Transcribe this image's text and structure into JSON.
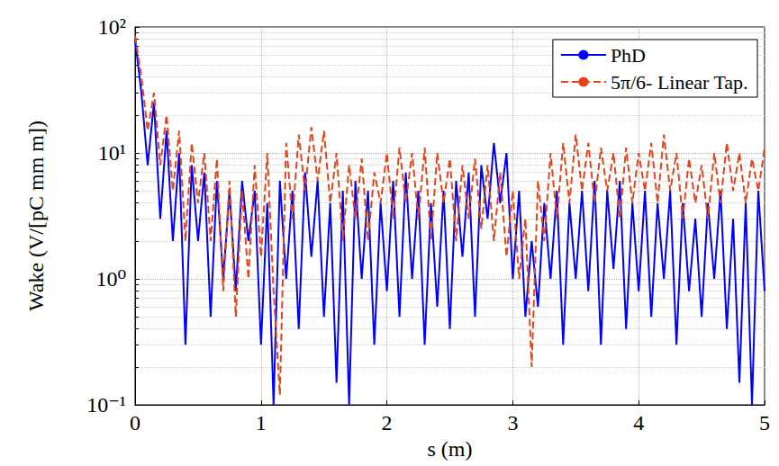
{
  "chart_data": {
    "type": "line",
    "x_label": "s (m)",
    "y_label": "Wake (V/[pC mm m])",
    "log": "y",
    "grid": true,
    "legend": "top-right",
    "xlim": [
      0,
      5
    ],
    "xticks": [
      0,
      1,
      2,
      3,
      4,
      5
    ],
    "ylim": [
      0.1,
      100
    ],
    "yticks": [
      {
        "value": 0.1,
        "label": "10⁻¹"
      },
      {
        "value": 1,
        "label": "10⁰"
      },
      {
        "value": 10,
        "label": "10¹"
      },
      {
        "value": 100,
        "label": "10²"
      }
    ],
    "x": [
      0,
      0.05,
      0.1,
      0.15,
      0.2,
      0.25,
      0.3,
      0.35,
      0.4,
      0.45,
      0.5,
      0.55,
      0.6,
      0.65,
      0.7,
      0.75,
      0.8,
      0.85,
      0.9,
      0.95,
      1.0,
      1.05,
      1.1,
      1.15,
      1.2,
      1.25,
      1.3,
      1.35,
      1.4,
      1.45,
      1.5,
      1.55,
      1.6,
      1.65,
      1.7,
      1.75,
      1.8,
      1.85,
      1.9,
      1.95,
      2.0,
      2.05,
      2.1,
      2.15,
      2.2,
      2.25,
      2.3,
      2.35,
      2.4,
      2.45,
      2.5,
      2.55,
      2.6,
      2.65,
      2.7,
      2.75,
      2.8,
      2.85,
      2.9,
      2.95,
      3.0,
      3.05,
      3.1,
      3.15,
      3.2,
      3.25,
      3.3,
      3.35,
      3.4,
      3.45,
      3.5,
      3.55,
      3.6,
      3.65,
      3.7,
      3.75,
      3.8,
      3.85,
      3.9,
      3.95,
      4.0,
      4.05,
      4.1,
      4.15,
      4.2,
      4.25,
      4.3,
      4.35,
      4.4,
      4.45,
      4.5,
      4.55,
      4.6,
      4.65,
      4.7,
      4.75,
      4.8,
      4.85,
      4.9,
      4.95,
      5.0
    ],
    "series": [
      {
        "name": "PhD",
        "color": "#0000ff",
        "line_style": "solid",
        "values": [
          80,
          30,
          8,
          25,
          3,
          15,
          2,
          10,
          0.3,
          8,
          2,
          7,
          0.5,
          6,
          1,
          5,
          0.8,
          6,
          2,
          5,
          0.3,
          4,
          0.1,
          6,
          1,
          5,
          0.4,
          7,
          1.5,
          6,
          0.5,
          4,
          0.15,
          5,
          0.1,
          6,
          1,
          5,
          0.3,
          4,
          0.8,
          6,
          0.5,
          7,
          1,
          5,
          0.3,
          4,
          0.6,
          5,
          0.4,
          6,
          1.5,
          7,
          0.5,
          8,
          3,
          12,
          4,
          10,
          1,
          5,
          0.5,
          2,
          0.6,
          4,
          1,
          5,
          0.3,
          4,
          1,
          5,
          0.8,
          6,
          0.3,
          5,
          1.2,
          6,
          0.4,
          4,
          0.8,
          5,
          0.5,
          4,
          1,
          5,
          0.3,
          4,
          0.8,
          3,
          0.5,
          4,
          1,
          5,
          0.4,
          3,
          0.15,
          4,
          0.1,
          5,
          0.8
        ]
      },
      {
        "name": "5π/6- Linear Tap.",
        "color": "#e2451c",
        "line_style": "dashed",
        "values": [
          85,
          40,
          15,
          30,
          8,
          20,
          5,
          15,
          2,
          12,
          4,
          10,
          2,
          9,
          0.8,
          6,
          0.5,
          5,
          1,
          8,
          1.5,
          10,
          0.8,
          0.12,
          12,
          3,
          14,
          5,
          16,
          6,
          15,
          4,
          10,
          2,
          8,
          3,
          9,
          2,
          7,
          4,
          10,
          3,
          11,
          4,
          10,
          3,
          11,
          2,
          10,
          4,
          9,
          2,
          8,
          3,
          9,
          2.5,
          8,
          2,
          7,
          1.5,
          5,
          1,
          3,
          0.2,
          6,
          2,
          10,
          3,
          12,
          4,
          14,
          5,
          12,
          4,
          11,
          5,
          10,
          3,
          11,
          4,
          10,
          5,
          12,
          4,
          14,
          5,
          10,
          3,
          9,
          4,
          8,
          3,
          10,
          4,
          12,
          5,
          10,
          4,
          9,
          5,
          11
        ]
      }
    ]
  }
}
